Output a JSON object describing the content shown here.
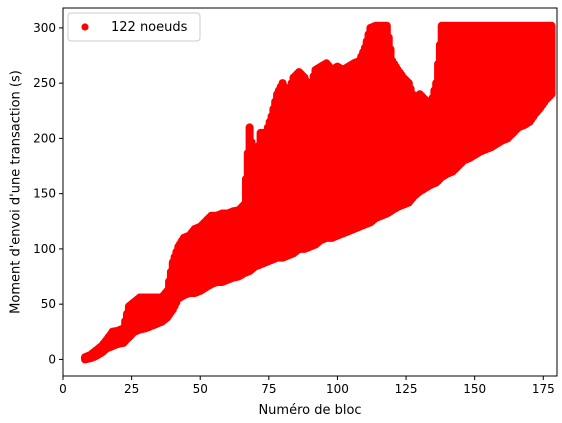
{
  "chart_data": {
    "type": "scatter",
    "xlabel": "Numéro de bloc",
    "ylabel": "Moment d'envoi d'une transaction (s)",
    "xlim": [
      0,
      180
    ],
    "ylim": [
      -15,
      318
    ],
    "xticks": [
      0,
      25,
      50,
      75,
      100,
      125,
      150,
      175
    ],
    "yticks": [
      0,
      50,
      100,
      150,
      200,
      250,
      300
    ],
    "grid": false,
    "legend_position": "upper-left",
    "series": [
      {
        "name": "122 noeuds",
        "color": "#ff0000",
        "bands": [
          [
            8,
            0,
            2
          ],
          [
            10,
            1,
            4
          ],
          [
            12,
            3,
            8
          ],
          [
            14,
            6,
            12
          ],
          [
            16,
            10,
            18
          ],
          [
            18,
            12,
            25
          ],
          [
            20,
            14,
            26
          ],
          [
            22,
            15,
            28
          ],
          [
            24,
            20,
            48
          ],
          [
            26,
            25,
            52
          ],
          [
            28,
            27,
            56
          ],
          [
            30,
            28,
            56
          ],
          [
            32,
            30,
            56
          ],
          [
            34,
            32,
            56
          ],
          [
            36,
            34,
            56
          ],
          [
            38,
            38,
            62
          ],
          [
            40,
            45,
            88
          ],
          [
            42,
            55,
            102
          ],
          [
            44,
            58,
            110
          ],
          [
            46,
            60,
            112
          ],
          [
            48,
            60,
            118
          ],
          [
            50,
            62,
            120
          ],
          [
            52,
            65,
            125
          ],
          [
            54,
            68,
            130
          ],
          [
            56,
            70,
            130
          ],
          [
            58,
            70,
            132
          ],
          [
            60,
            72,
            132
          ],
          [
            62,
            74,
            134
          ],
          [
            64,
            75,
            135
          ],
          [
            66,
            78,
            140
          ],
          [
            68,
            80,
            210
          ],
          [
            70,
            84,
            170
          ],
          [
            72,
            86,
            205
          ],
          [
            74,
            88,
            205
          ],
          [
            76,
            90,
            220
          ],
          [
            78,
            92,
            240
          ],
          [
            80,
            92,
            250
          ],
          [
            82,
            94,
            240
          ],
          [
            84,
            96,
            255
          ],
          [
            86,
            100,
            260
          ],
          [
            88,
            100,
            255
          ],
          [
            90,
            102,
            245
          ],
          [
            92,
            104,
            262
          ],
          [
            94,
            108,
            265
          ],
          [
            96,
            110,
            268
          ],
          [
            98,
            110,
            262
          ],
          [
            100,
            112,
            265
          ],
          [
            102,
            114,
            262
          ],
          [
            104,
            116,
            265
          ],
          [
            106,
            118,
            268
          ],
          [
            108,
            120,
            270
          ],
          [
            110,
            122,
            282
          ],
          [
            112,
            124,
            300
          ],
          [
            114,
            128,
            302
          ],
          [
            116,
            130,
            302
          ],
          [
            118,
            132,
            302
          ],
          [
            120,
            135,
            270
          ],
          [
            122,
            138,
            262
          ],
          [
            124,
            140,
            255
          ],
          [
            126,
            142,
            250
          ],
          [
            128,
            148,
            235
          ],
          [
            130,
            152,
            240
          ],
          [
            132,
            155,
            235
          ],
          [
            134,
            158,
            230
          ],
          [
            136,
            160,
            250
          ],
          [
            138,
            165,
            302
          ],
          [
            140,
            168,
            302
          ],
          [
            142,
            170,
            302
          ],
          [
            144,
            175,
            302
          ],
          [
            146,
            180,
            302
          ],
          [
            148,
            182,
            302
          ],
          [
            150,
            185,
            302
          ],
          [
            152,
            188,
            302
          ],
          [
            154,
            190,
            302
          ],
          [
            156,
            192,
            302
          ],
          [
            158,
            195,
            302
          ],
          [
            160,
            198,
            302
          ],
          [
            162,
            200,
            302
          ],
          [
            164,
            205,
            302
          ],
          [
            166,
            210,
            302
          ],
          [
            168,
            212,
            302
          ],
          [
            170,
            215,
            302
          ],
          [
            172,
            222,
            302
          ],
          [
            174,
            228,
            302
          ],
          [
            176,
            235,
            302
          ],
          [
            178,
            240,
            302
          ]
        ]
      }
    ]
  }
}
